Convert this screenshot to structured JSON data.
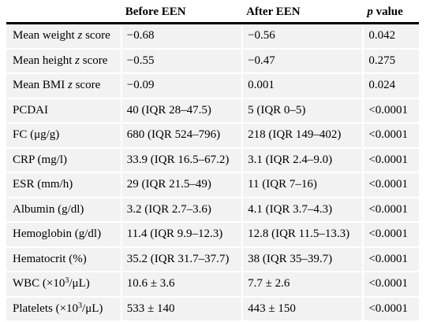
{
  "table": {
    "headers": {
      "col1": "",
      "before": "Before EEN",
      "after": "After EEN",
      "p_var": "p",
      "p_rest": " value"
    },
    "rows": [
      {
        "label_pre": "Mean weight ",
        "label_italic": "z",
        "label_post": " score",
        "before": "−0.68",
        "after": "−0.56",
        "p": "0.042"
      },
      {
        "label_pre": "Mean height ",
        "label_italic": "z",
        "label_post": " score",
        "before": "−0.55",
        "after": "−0.47",
        "p": "0.275"
      },
      {
        "label_pre": "Mean BMI ",
        "label_italic": "z",
        "label_post": " score",
        "before": "−0.09",
        "after": "0.001",
        "p": "0.024"
      },
      {
        "label": "PCDAI",
        "before": "40 (IQR 28–47.5)",
        "after": "5 (IQR 0–5)",
        "p": "<0.0001"
      },
      {
        "label": "FC (μg/g)",
        "before": "680 (IQR 524–796)",
        "after": "218 (IQR 149–402)",
        "p": "<0.0001"
      },
      {
        "label": "CRP (mg/l)",
        "before": "33.9 (IQR 16.5–67.2)",
        "after": "3.1 (IQR 2.4–9.0)",
        "p": "<0.0001"
      },
      {
        "label": "ESR (mm/h)",
        "before": "29 (IQR 21.5–49)",
        "after": "11 (IQR 7–16)",
        "p": "<0.0001"
      },
      {
        "label": "Albumin (g/dl)",
        "before": "3.2 (IQR 2.7–3.6)",
        "after": "4.1 (IQR 3.7–4.3)",
        "p": "<0.0001"
      },
      {
        "label": "Hemoglobin (g/dl)",
        "before": "11.4 (IQR 9.9–12.3)",
        "after": "12.8 (IQR 11.5–13.3)",
        "p": "<0.0001"
      },
      {
        "label": "Hematocrit (%)",
        "before": "35.2 (IQR 31.7–37.7)",
        "after": "38 (IQR 35–39.7)",
        "p": "<0.0001"
      },
      {
        "label_pre": "WBC (×10",
        "label_sup": "3",
        "label_post": "/μL)",
        "before": "10.6 ± 3.6",
        "after": "7.7 ± 2.6",
        "p": "<0.0001"
      },
      {
        "label_pre": "Platelets (×10",
        "label_sup": "3",
        "label_post": "/μL)",
        "before": "533 ± 140",
        "after": "443 ± 150",
        "p": "<0.0001"
      }
    ]
  }
}
